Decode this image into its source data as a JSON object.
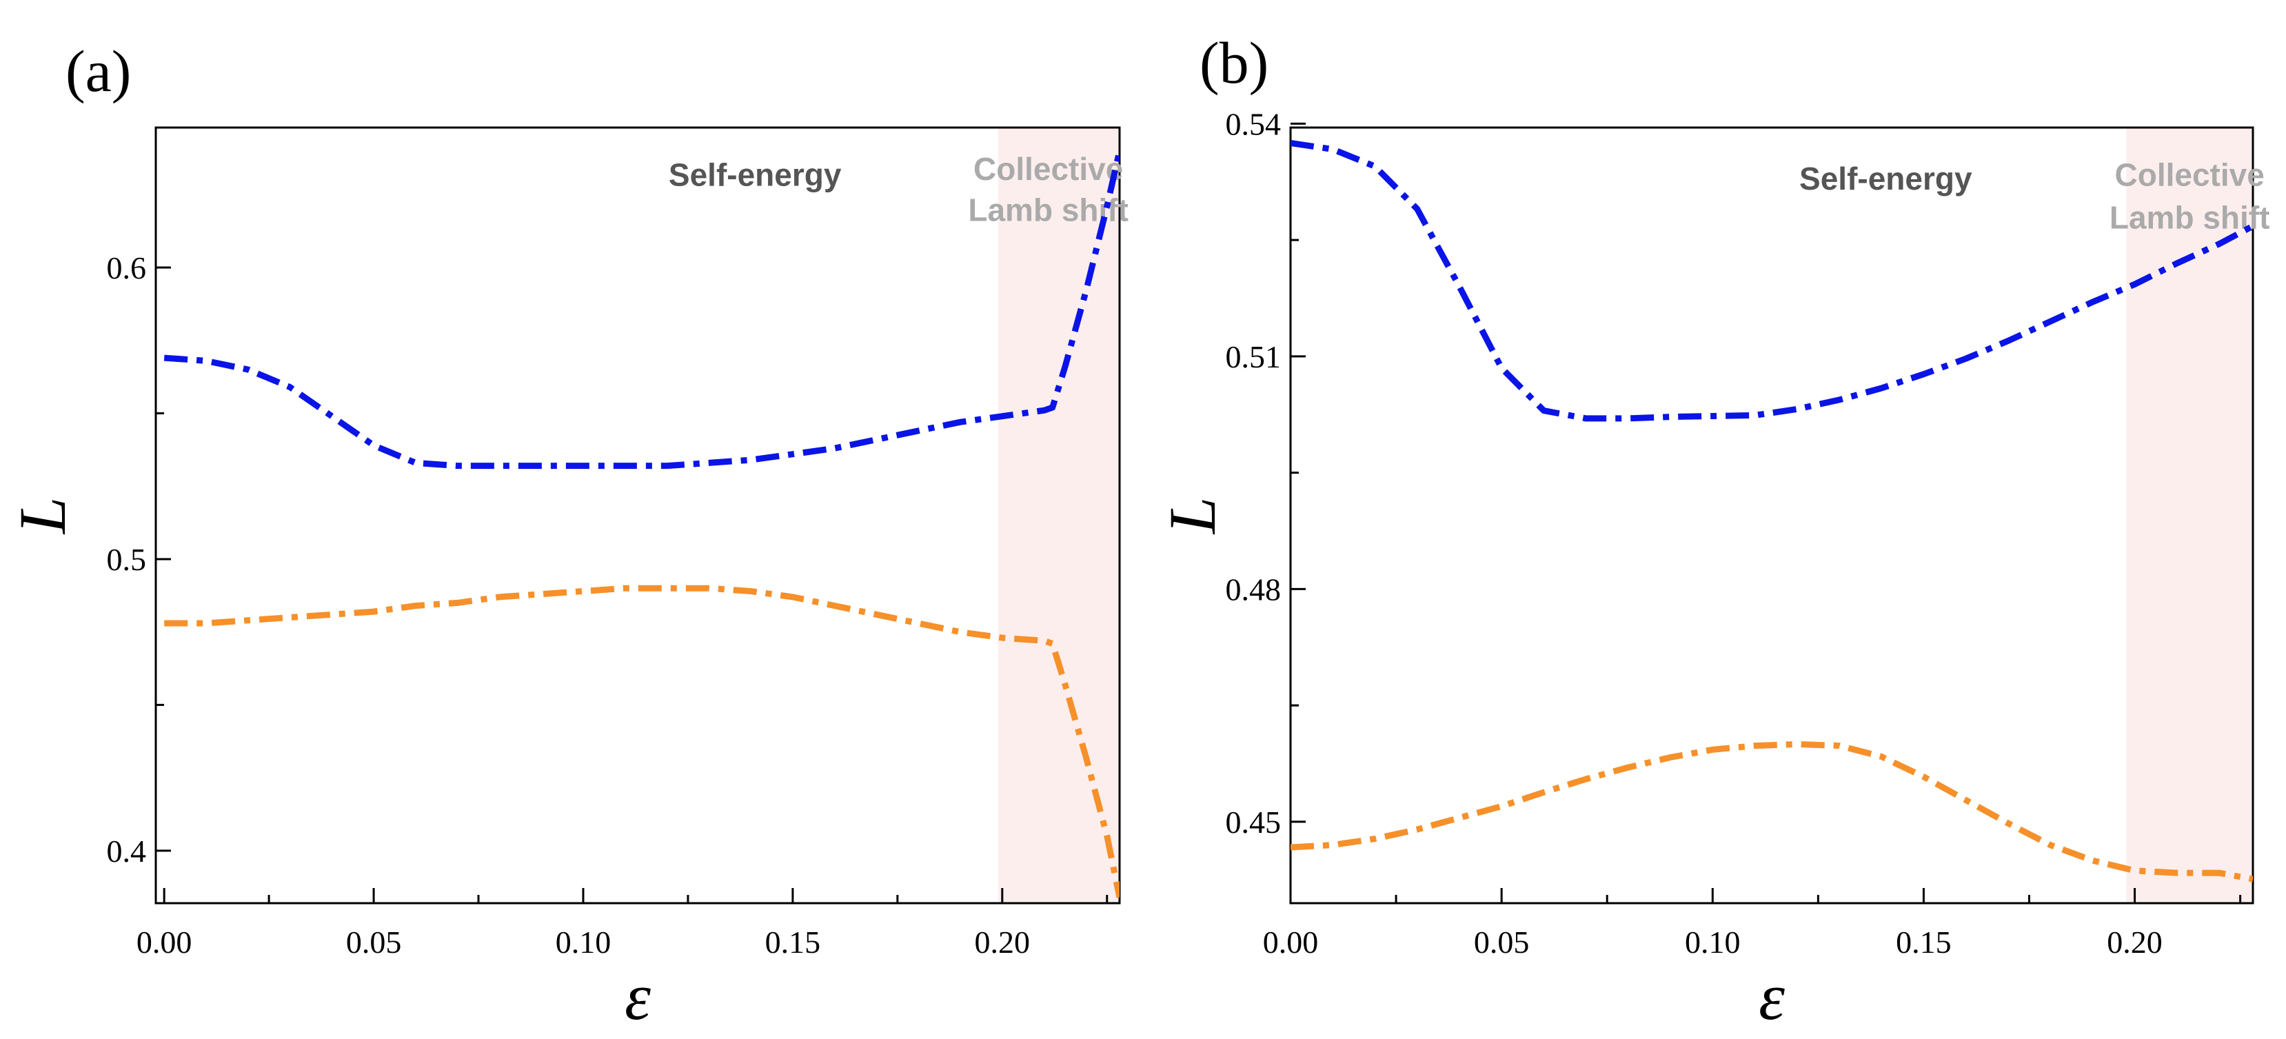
{
  "chart_data": [
    {
      "type": "line",
      "panel_label": "(a)",
      "xlabel": "ε",
      "ylabel": "L",
      "xlim": [
        -0.002,
        0.228
      ],
      "ylim": [
        0.382,
        0.648
      ],
      "xticks": [
        0.0,
        0.05,
        0.1,
        0.15,
        0.2
      ],
      "xtick_labels": [
        "0.00",
        "0.05",
        "0.10",
        "0.15",
        "0.20"
      ],
      "xminor": [
        0.025,
        0.075,
        0.125,
        0.175,
        0.225
      ],
      "yticks": [
        0.4,
        0.5,
        0.6
      ],
      "ytick_labels": [
        "0.4",
        "0.5",
        "0.6"
      ],
      "yminor": [
        0.45,
        0.55
      ],
      "shaded_region": {
        "x_start": 0.199,
        "x_end": 0.228,
        "color": "#fdeeee"
      },
      "annotations": [
        {
          "text": "Self-energy",
          "x": 0.141,
          "y": 0.628,
          "style": "dark"
        },
        {
          "text": "Collective",
          "x": 0.211,
          "y": 0.63,
          "style": "light"
        },
        {
          "text": "Lamb shift",
          "x": 0.211,
          "y": 0.616,
          "style": "light"
        }
      ],
      "series": [
        {
          "name": "blue",
          "color": "#0a14e6",
          "x": [
            0.0,
            0.01,
            0.02,
            0.03,
            0.04,
            0.05,
            0.06,
            0.07,
            0.08,
            0.09,
            0.1,
            0.11,
            0.12,
            0.13,
            0.14,
            0.15,
            0.16,
            0.17,
            0.18,
            0.19,
            0.2,
            0.21,
            0.212,
            0.215,
            0.22,
            0.225,
            0.228
          ],
          "values": [
            0.569,
            0.568,
            0.565,
            0.559,
            0.549,
            0.539,
            0.533,
            0.532,
            0.532,
            0.532,
            0.532,
            0.532,
            0.532,
            0.533,
            0.534,
            0.536,
            0.538,
            0.541,
            0.544,
            0.547,
            0.549,
            0.551,
            0.552,
            0.566,
            0.592,
            0.621,
            0.64
          ]
        },
        {
          "name": "orange",
          "color": "#f6902a",
          "x": [
            0.0,
            0.01,
            0.02,
            0.03,
            0.04,
            0.05,
            0.06,
            0.07,
            0.08,
            0.09,
            0.1,
            0.11,
            0.12,
            0.13,
            0.14,
            0.15,
            0.16,
            0.17,
            0.18,
            0.19,
            0.2,
            0.21,
            0.212,
            0.215,
            0.22,
            0.225,
            0.228
          ],
          "values": [
            0.478,
            0.478,
            0.479,
            0.48,
            0.481,
            0.482,
            0.484,
            0.485,
            0.487,
            0.488,
            0.489,
            0.49,
            0.49,
            0.49,
            0.489,
            0.487,
            0.484,
            0.481,
            0.478,
            0.475,
            0.473,
            0.472,
            0.471,
            0.457,
            0.432,
            0.405,
            0.384
          ]
        }
      ]
    },
    {
      "type": "line",
      "panel_label": "(b)",
      "xlabel": "ε",
      "ylabel": "L",
      "xlim": [
        0.0,
        0.228
      ],
      "ylim": [
        0.4395,
        0.5395
      ],
      "xticks": [
        0.0,
        0.05,
        0.1,
        0.15,
        0.2
      ],
      "xtick_labels": [
        "0.00",
        "0.05",
        "0.10",
        "0.15",
        "0.20"
      ],
      "xminor": [
        0.025,
        0.075,
        0.125,
        0.175,
        0.225
      ],
      "yticks": [
        0.45,
        0.48,
        0.51,
        0.54
      ],
      "ytick_labels": [
        "0.45",
        "0.48",
        "0.51",
        "0.54"
      ],
      "yminor": [
        0.465,
        0.495,
        0.525
      ],
      "shaded_region": {
        "x_start": 0.198,
        "x_end": 0.228,
        "color": "#fdeeee"
      },
      "annotations": [
        {
          "text": "Self-energy",
          "x": 0.141,
          "y": 0.5315,
          "style": "dark"
        },
        {
          "text": "Collective",
          "x": 0.213,
          "y": 0.532,
          "style": "light"
        },
        {
          "text": "Lamb shift",
          "x": 0.213,
          "y": 0.5265,
          "style": "light"
        }
      ],
      "series": [
        {
          "name": "blue",
          "color": "#0a14e6",
          "x": [
            0.0,
            0.01,
            0.02,
            0.03,
            0.04,
            0.05,
            0.06,
            0.07,
            0.08,
            0.09,
            0.1,
            0.11,
            0.12,
            0.13,
            0.14,
            0.15,
            0.16,
            0.17,
            0.18,
            0.19,
            0.2,
            0.21,
            0.22,
            0.228
          ],
          "values": [
            0.5375,
            0.5367,
            0.5345,
            0.529,
            0.519,
            0.5085,
            0.503,
            0.502,
            0.502,
            0.5022,
            0.5023,
            0.5024,
            0.5032,
            0.5044,
            0.5059,
            0.5077,
            0.5097,
            0.512,
            0.5145,
            0.517,
            0.5193,
            0.522,
            0.5245,
            0.5268
          ]
        },
        {
          "name": "orange",
          "color": "#f6902a",
          "x": [
            0.0,
            0.01,
            0.02,
            0.03,
            0.04,
            0.05,
            0.06,
            0.07,
            0.08,
            0.09,
            0.1,
            0.11,
            0.12,
            0.13,
            0.14,
            0.15,
            0.16,
            0.17,
            0.18,
            0.19,
            0.2,
            0.21,
            0.22,
            0.228
          ],
          "values": [
            0.4467,
            0.447,
            0.4478,
            0.449,
            0.4505,
            0.452,
            0.4538,
            0.4555,
            0.457,
            0.4583,
            0.4593,
            0.4598,
            0.46,
            0.4598,
            0.4584,
            0.4558,
            0.4528,
            0.4498,
            0.447,
            0.445,
            0.4437,
            0.4434,
            0.4434,
            0.4426
          ]
        }
      ]
    }
  ]
}
